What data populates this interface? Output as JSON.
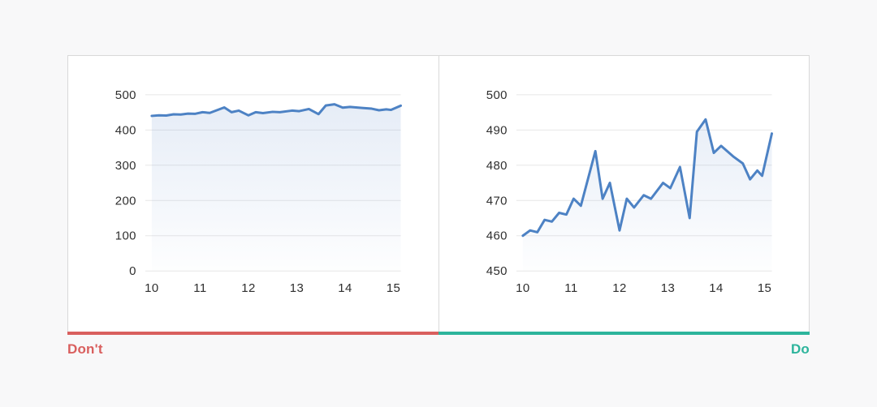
{
  "page": {
    "background": "#f8f8f9",
    "panel_background": "#ffffff",
    "panel_border": "#d9d9d9"
  },
  "comparison": {
    "dont_label": "Don't",
    "do_label": "Do",
    "dont_color": "#d95f5e",
    "do_color": "#2db49c"
  },
  "chart_data": [
    {
      "id": "dont",
      "type": "line",
      "area_fill": true,
      "title": "",
      "xlabel": "",
      "ylabel": "",
      "legend": "none",
      "grid": "horizontal",
      "line_color": "#4d82c4",
      "fill_color": "#5a86c8",
      "grid_color": "#e7e7e7",
      "xlim": [
        10,
        15
      ],
      "ylim": [
        0,
        500
      ],
      "x_ticks": [
        10,
        11,
        12,
        13,
        14,
        15
      ],
      "y_ticks": [
        0,
        100,
        200,
        300,
        400,
        500
      ],
      "x": [
        10.0,
        10.15,
        10.3,
        10.45,
        10.6,
        10.75,
        10.9,
        11.05,
        11.2,
        11.5,
        11.65,
        11.8,
        12.0,
        12.15,
        12.3,
        12.5,
        12.65,
        12.9,
        13.05,
        13.25,
        13.45,
        13.6,
        13.78,
        13.95,
        14.1,
        14.35,
        14.55,
        14.7,
        14.85,
        14.95,
        15.15
      ],
      "values": [
        440,
        441.5,
        441,
        444.5,
        444,
        446.5,
        446,
        450.5,
        448.5,
        464,
        450.5,
        455,
        441.5,
        450.5,
        448,
        451.5,
        450.5,
        455,
        453.5,
        459.5,
        445,
        469.5,
        473,
        463.5,
        465.5,
        462.5,
        460.5,
        456,
        458.5,
        457,
        469
      ]
    },
    {
      "id": "do",
      "type": "line",
      "area_fill": true,
      "title": "",
      "xlabel": "",
      "ylabel": "",
      "legend": "none",
      "grid": "horizontal",
      "line_color": "#4d82c4",
      "fill_color": "#5a86c8",
      "grid_color": "#e7e7e7",
      "xlim": [
        10,
        15
      ],
      "ylim": [
        450,
        500
      ],
      "x_ticks": [
        10,
        11,
        12,
        13,
        14,
        15
      ],
      "y_ticks": [
        450,
        460,
        470,
        480,
        490,
        500
      ],
      "x": [
        10.0,
        10.15,
        10.3,
        10.45,
        10.6,
        10.75,
        10.9,
        11.05,
        11.2,
        11.5,
        11.65,
        11.8,
        12.0,
        12.15,
        12.3,
        12.5,
        12.65,
        12.9,
        13.05,
        13.25,
        13.45,
        13.6,
        13.78,
        13.95,
        14.1,
        14.35,
        14.55,
        14.7,
        14.85,
        14.95,
        15.15
      ],
      "values": [
        460,
        461.5,
        461,
        464.5,
        464,
        466.5,
        466,
        470.5,
        468.5,
        484,
        470.5,
        475,
        461.5,
        470.5,
        468,
        471.5,
        470.5,
        475,
        473.5,
        479.5,
        465,
        489.5,
        493,
        483.5,
        485.5,
        482.5,
        480.5,
        476,
        478.5,
        477,
        489
      ]
    }
  ]
}
